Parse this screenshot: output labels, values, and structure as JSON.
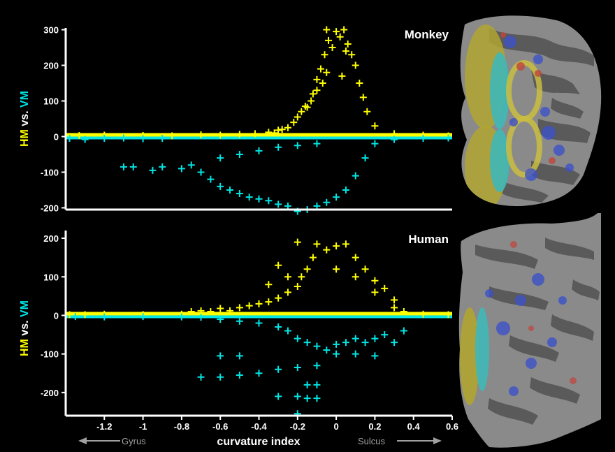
{
  "chart_data": [
    {
      "type": "scatter",
      "title": "Monkey",
      "ylabel_parts": [
        "HM",
        " vs. ",
        "VM"
      ],
      "xlim": [
        -1.4,
        0.6
      ],
      "ylim": [
        -205,
        305
      ],
      "yticks": [
        "300",
        "200",
        "100",
        "0",
        "-100",
        "-200"
      ],
      "ytick_values": [
        300,
        200,
        100,
        0,
        -100,
        -200
      ],
      "series": [
        {
          "color": "#ffff00",
          "symbol": "plus",
          "description": "HM-preferring voxels, values >= 0",
          "points": [
            [
              -1.33,
              3
            ],
            [
              -1.2,
              4
            ],
            [
              -1.0,
              3
            ],
            [
              -0.85,
              2
            ],
            [
              -0.7,
              5
            ],
            [
              -0.6,
              4
            ],
            [
              -0.5,
              6
            ],
            [
              -0.42,
              8
            ],
            [
              -0.35,
              12
            ],
            [
              -0.3,
              18
            ],
            [
              -0.25,
              25
            ],
            [
              -0.22,
              40
            ],
            [
              -0.2,
              55
            ],
            [
              -0.18,
              70
            ],
            [
              -0.15,
              82
            ],
            [
              -0.12,
              120
            ],
            [
              -0.1,
              160
            ],
            [
              -0.08,
              190
            ],
            [
              -0.06,
              230
            ],
            [
              -0.05,
              300
            ],
            [
              -0.04,
              270
            ],
            [
              -0.02,
              250
            ],
            [
              0.0,
              295
            ],
            [
              0.02,
              280
            ],
            [
              0.04,
              300
            ],
            [
              0.06,
              260
            ],
            [
              0.08,
              230
            ],
            [
              0.1,
              200
            ],
            [
              0.12,
              150
            ],
            [
              0.14,
              110
            ],
            [
              0.16,
              70
            ],
            [
              0.2,
              30
            ],
            [
              0.3,
              8
            ],
            [
              0.45,
              4
            ],
            [
              0.58,
              2
            ],
            [
              -0.1,
              130
            ],
            [
              -0.13,
              100
            ],
            [
              -0.16,
              85
            ],
            [
              -0.05,
              180
            ],
            [
              0.05,
              240
            ],
            [
              -0.28,
              20
            ],
            [
              -0.32,
              10
            ],
            [
              0.03,
              170
            ],
            [
              -0.07,
              150
            ]
          ]
        },
        {
          "color": "#00e5e5",
          "symbol": "plus",
          "description": "VM-preferring voxels, values <= 0",
          "points": [
            [
              -1.38,
              -5
            ],
            [
              -1.3,
              -8
            ],
            [
              -1.2,
              -5
            ],
            [
              -1.1,
              -4
            ],
            [
              -1.0,
              -6
            ],
            [
              -0.9,
              -5
            ],
            [
              -1.1,
              -85
            ],
            [
              -1.05,
              -85
            ],
            [
              -0.95,
              -95
            ],
            [
              -0.9,
              -85
            ],
            [
              -0.8,
              -90
            ],
            [
              -0.75,
              -80
            ],
            [
              -0.7,
              -100
            ],
            [
              -0.65,
              -120
            ],
            [
              -0.6,
              -140
            ],
            [
              -0.55,
              -150
            ],
            [
              -0.5,
              -160
            ],
            [
              -0.45,
              -170
            ],
            [
              -0.4,
              -175
            ],
            [
              -0.35,
              -180
            ],
            [
              -0.3,
              -190
            ],
            [
              -0.25,
              -195
            ],
            [
              -0.2,
              -210
            ],
            [
              -0.15,
              -205
            ],
            [
              -0.1,
              -195
            ],
            [
              -0.05,
              -185
            ],
            [
              0.0,
              -170
            ],
            [
              0.05,
              -150
            ],
            [
              0.1,
              -110
            ],
            [
              0.15,
              -60
            ],
            [
              0.2,
              -20
            ],
            [
              0.3,
              -8
            ],
            [
              0.45,
              -5
            ],
            [
              0.58,
              -4
            ],
            [
              -0.6,
              -60
            ],
            [
              -0.5,
              -50
            ],
            [
              -0.4,
              -40
            ],
            [
              -0.3,
              -30
            ],
            [
              -0.2,
              -25
            ],
            [
              -0.1,
              -20
            ]
          ]
        }
      ]
    },
    {
      "type": "scatter",
      "title": "Human",
      "ylabel_parts": [
        "HM",
        " vs. ",
        "VM"
      ],
      "xlabel": "curvature index",
      "xlim": [
        -1.4,
        0.6
      ],
      "ylim": [
        -260,
        220
      ],
      "xticks": [
        "-1.2",
        "-1",
        "-0.8",
        "-0.6",
        "-0.4",
        "-0.2",
        "0",
        "0.2",
        "0.4",
        "0.6"
      ],
      "xtick_values": [
        -1.2,
        -1.0,
        -0.8,
        -0.6,
        -0.4,
        -0.2,
        0,
        0.2,
        0.4,
        0.6
      ],
      "yticks": [
        "200",
        "100",
        "0",
        "-100",
        "-200"
      ],
      "ytick_values": [
        200,
        100,
        0,
        -100,
        -200
      ],
      "series": [
        {
          "color": "#ffff00",
          "symbol": "plus",
          "description": "HM-preferring voxels, values >= 0",
          "points": [
            [
              -1.38,
              2
            ],
            [
              -1.3,
              2
            ],
            [
              -1.2,
              3
            ],
            [
              -1.0,
              2
            ],
            [
              -0.8,
              3
            ],
            [
              -0.75,
              10
            ],
            [
              -0.7,
              12
            ],
            [
              -0.65,
              10
            ],
            [
              -0.6,
              18
            ],
            [
              -0.55,
              12
            ],
            [
              -0.5,
              20
            ],
            [
              -0.45,
              25
            ],
            [
              -0.4,
              30
            ],
            [
              -0.35,
              35
            ],
            [
              -0.3,
              45
            ],
            [
              -0.25,
              60
            ],
            [
              -0.2,
              75
            ],
            [
              -0.18,
              100
            ],
            [
              -0.15,
              120
            ],
            [
              -0.12,
              150
            ],
            [
              -0.1,
              185
            ],
            [
              -0.05,
              170
            ],
            [
              0.0,
              180
            ],
            [
              0.05,
              185
            ],
            [
              0.1,
              150
            ],
            [
              0.15,
              120
            ],
            [
              0.2,
              90
            ],
            [
              0.25,
              70
            ],
            [
              0.3,
              40
            ],
            [
              0.35,
              10
            ],
            [
              0.45,
              3
            ],
            [
              0.58,
              2
            ],
            [
              -0.2,
              190
            ],
            [
              -0.3,
              130
            ],
            [
              -0.35,
              80
            ],
            [
              -0.25,
              100
            ],
            [
              0.0,
              120
            ],
            [
              0.1,
              100
            ],
            [
              0.2,
              60
            ],
            [
              0.3,
              20
            ]
          ]
        },
        {
          "color": "#00e5e5",
          "symbol": "plus",
          "description": "VM-preferring voxels, values <= 0",
          "points": [
            [
              -1.35,
              -3
            ],
            [
              -1.2,
              -4
            ],
            [
              -1.0,
              -3
            ],
            [
              -0.8,
              -4
            ],
            [
              -0.7,
              -5
            ],
            [
              -0.6,
              -10
            ],
            [
              -0.5,
              -15
            ],
            [
              -0.4,
              -20
            ],
            [
              -0.3,
              -30
            ],
            [
              -0.25,
              -40
            ],
            [
              -0.2,
              -60
            ],
            [
              -0.15,
              -70
            ],
            [
              -0.1,
              -80
            ],
            [
              -0.05,
              -90
            ],
            [
              0.0,
              -75
            ],
            [
              0.05,
              -70
            ],
            [
              0.1,
              -60
            ],
            [
              0.15,
              -70
            ],
            [
              0.2,
              -60
            ],
            [
              0.25,
              -50
            ],
            [
              0.3,
              -70
            ],
            [
              0.35,
              -40
            ],
            [
              -0.7,
              -160
            ],
            [
              -0.6,
              -160
            ],
            [
              -0.5,
              -155
            ],
            [
              -0.4,
              -150
            ],
            [
              -0.3,
              -140
            ],
            [
              -0.2,
              -135
            ],
            [
              -0.1,
              -130
            ],
            [
              -0.6,
              -105
            ],
            [
              -0.5,
              -105
            ],
            [
              -0.15,
              -180
            ],
            [
              -0.1,
              -180
            ],
            [
              -0.3,
              -210
            ],
            [
              -0.2,
              -210
            ],
            [
              -0.15,
              -215
            ],
            [
              -0.1,
              -215
            ],
            [
              -0.2,
              -255
            ],
            [
              0.0,
              -100
            ],
            [
              0.1,
              -100
            ],
            [
              0.2,
              -105
            ]
          ]
        }
      ]
    }
  ],
  "direction_labels": {
    "left": "Gyrus",
    "right": "Sulcus"
  },
  "colors": {
    "hm": "#ffff00",
    "vm": "#00e5e5",
    "axis": "#ffffff",
    "background": "#000000",
    "direction": "#a0a0a0"
  },
  "images": [
    {
      "name": "monkey-flatmap",
      "description": "inflated cortical flat map, gray sulcal pattern with cyan, yellow, blue and red activation patches"
    },
    {
      "name": "human-flatmap",
      "description": "inflated cortical flat map, gray sulcal pattern with cyan, yellow, blue and red activation patches"
    }
  ]
}
